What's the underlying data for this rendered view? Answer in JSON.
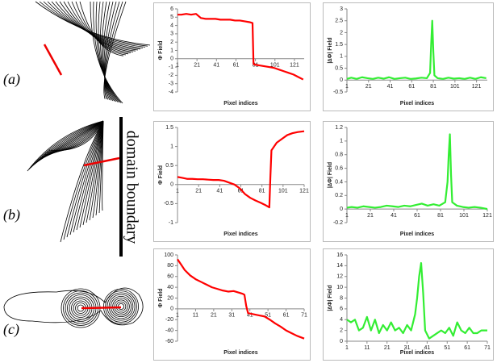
{
  "panel_labels": [
    "(a)",
    "(b)",
    "(c)"
  ],
  "annotation": "domain boundary",
  "chart_data": [
    {
      "type": "line",
      "x_label": "Pixel indices",
      "y_label": "Φ Field",
      "x": [
        1,
        5,
        10,
        15,
        20,
        25,
        30,
        35,
        40,
        45,
        50,
        55,
        60,
        65,
        70,
        75,
        78,
        79,
        80,
        85,
        90,
        95,
        100,
        105,
        110,
        115,
        120,
        125,
        130
      ],
      "series": [
        {
          "color": "#ff0000",
          "values": [
            5.3,
            5.3,
            5.4,
            5.3,
            5.4,
            4.9,
            4.8,
            4.8,
            4.8,
            4.7,
            4.7,
            4.7,
            4.6,
            4.6,
            4.5,
            4.4,
            4.3,
            -0.6,
            -0.7,
            -0.8,
            -0.9,
            -1.0,
            -1.1,
            -1.3,
            -1.5,
            -1.7,
            -1.9,
            -2.2,
            -2.5
          ]
        }
      ],
      "xlim": [
        1,
        131
      ],
      "xticks": [
        1,
        21,
        41,
        61,
        81,
        101,
        121
      ],
      "ylim": [
        -4,
        6
      ],
      "yticks": [
        -4,
        -3,
        -2,
        -1,
        0,
        1,
        2,
        3,
        4,
        5,
        6
      ]
    },
    {
      "type": "line",
      "x_label": "Pixel indices",
      "y_label": "|∆Φ| Field",
      "x": [
        1,
        5,
        10,
        15,
        20,
        25,
        30,
        35,
        40,
        45,
        50,
        55,
        60,
        65,
        70,
        75,
        78,
        79,
        80,
        81,
        82,
        85,
        90,
        95,
        100,
        105,
        110,
        115,
        120,
        125,
        130
      ],
      "series": [
        {
          "color": "#33ee33",
          "values": [
            0.05,
            0.1,
            0.05,
            0.12,
            0.08,
            0.05,
            0.1,
            0.06,
            0.12,
            0.05,
            0.08,
            0.1,
            0.05,
            0.07,
            0.1,
            0.08,
            0.3,
            1.5,
            2.5,
            1.2,
            0.2,
            0.08,
            0.05,
            0.1,
            0.06,
            0.08,
            0.05,
            0.1,
            0.05,
            0.12,
            0.08
          ]
        }
      ],
      "xlim": [
        1,
        131
      ],
      "xticks": [
        1,
        21,
        41,
        61,
        81,
        101,
        121
      ],
      "ylim": [
        -0.5,
        3
      ],
      "yticks": [
        -0.5,
        0,
        0.5,
        1,
        1.5,
        2,
        2.5,
        3
      ]
    },
    {
      "type": "line",
      "x_label": "Pixel indices",
      "y_label": "Φ Field",
      "x": [
        1,
        5,
        10,
        15,
        20,
        25,
        30,
        35,
        40,
        45,
        50,
        55,
        60,
        65,
        70,
        75,
        80,
        85,
        88,
        89,
        90,
        95,
        100,
        105,
        110,
        115,
        121
      ],
      "series": [
        {
          "color": "#ff0000",
          "values": [
            0.2,
            0.18,
            0.15,
            0.15,
            0.14,
            0.14,
            0.13,
            0.12,
            0.12,
            0.1,
            0.05,
            0.0,
            -0.1,
            -0.25,
            -0.35,
            -0.42,
            -0.48,
            -0.55,
            -0.6,
            0.2,
            0.9,
            1.1,
            1.2,
            1.3,
            1.35,
            1.38,
            1.4
          ]
        }
      ],
      "xlim": [
        1,
        121
      ],
      "xticks": [
        1,
        21,
        41,
        61,
        81,
        101,
        121
      ],
      "ylim": [
        -1,
        1.5
      ],
      "yticks": [
        -1,
        -0.5,
        0,
        0.5,
        1,
        1.5
      ]
    },
    {
      "type": "line",
      "x_label": "Pixel indices",
      "y_label": "|∆Φ| Field",
      "x": [
        1,
        5,
        10,
        15,
        20,
        25,
        30,
        35,
        40,
        45,
        50,
        55,
        60,
        65,
        70,
        75,
        80,
        85,
        87,
        88,
        89,
        90,
        91,
        95,
        100,
        105,
        110,
        115,
        121
      ],
      "series": [
        {
          "color": "#33ee33",
          "values": [
            0.02,
            0.03,
            0.02,
            0.04,
            0.03,
            0.02,
            0.03,
            0.05,
            0.04,
            0.03,
            0.05,
            0.04,
            0.06,
            0.08,
            0.05,
            0.07,
            0.05,
            0.1,
            0.4,
            0.8,
            1.1,
            0.5,
            0.1,
            0.05,
            0.03,
            0.02,
            0.03,
            0.02,
            0.0
          ]
        }
      ],
      "xlim": [
        1,
        121
      ],
      "xticks": [
        1,
        21,
        41,
        61,
        81,
        101,
        121
      ],
      "ylim": [
        -0.2,
        1.2
      ],
      "yticks": [
        -0.2,
        0,
        0.2,
        0.4,
        0.6,
        0.8,
        1,
        1.2
      ]
    },
    {
      "type": "line",
      "x_label": "Pixel indices",
      "y_label": "Φ Field",
      "x": [
        1,
        3,
        5,
        8,
        11,
        14,
        17,
        20,
        23,
        26,
        29,
        32,
        35,
        37,
        38,
        39,
        40,
        43,
        46,
        49,
        52,
        55,
        58,
        61,
        64,
        67,
        71
      ],
      "series": [
        {
          "color": "#ff0000",
          "values": [
            92,
            82,
            72,
            62,
            55,
            50,
            45,
            40,
            37,
            34,
            32,
            33,
            30,
            28,
            26,
            5,
            -8,
            -10,
            -12,
            -14,
            -20,
            -27,
            -33,
            -40,
            -45,
            -50,
            -55
          ]
        }
      ],
      "xlim": [
        1,
        71
      ],
      "xticks": [
        1,
        11,
        21,
        31,
        41,
        51,
        61,
        71
      ],
      "ylim": [
        -60,
        100
      ],
      "yticks": [
        -60,
        -40,
        -20,
        0,
        20,
        40,
        60,
        80,
        100
      ]
    },
    {
      "type": "line",
      "x_label": "Pixel indices",
      "y_label": "|∆Φ| Field",
      "x": [
        1,
        3,
        5,
        7,
        9,
        11,
        13,
        15,
        17,
        19,
        21,
        23,
        25,
        27,
        29,
        31,
        33,
        35,
        36,
        37,
        38,
        39,
        40,
        42,
        44,
        46,
        48,
        50,
        52,
        54,
        56,
        58,
        60,
        62,
        64,
        66,
        68,
        71
      ],
      "series": [
        {
          "color": "#33ee33",
          "values": [
            4,
            3.5,
            4,
            2,
            2.5,
            4.5,
            2,
            4,
            1.5,
            3,
            2,
            3.5,
            2,
            2.5,
            1.5,
            3,
            2,
            5,
            8,
            12,
            14.5,
            9,
            2,
            0.5,
            1,
            1.5,
            2,
            1.5,
            2.5,
            1,
            3.5,
            2,
            1.5,
            2.5,
            1.5,
            1.5,
            2,
            2
          ]
        }
      ],
      "xlim": [
        1,
        71
      ],
      "xticks": [
        1,
        11,
        21,
        31,
        41,
        51,
        61,
        71
      ],
      "ylim": [
        0,
        16
      ],
      "yticks": [
        0,
        2,
        4,
        6,
        8,
        10,
        12,
        14,
        16
      ]
    }
  ]
}
